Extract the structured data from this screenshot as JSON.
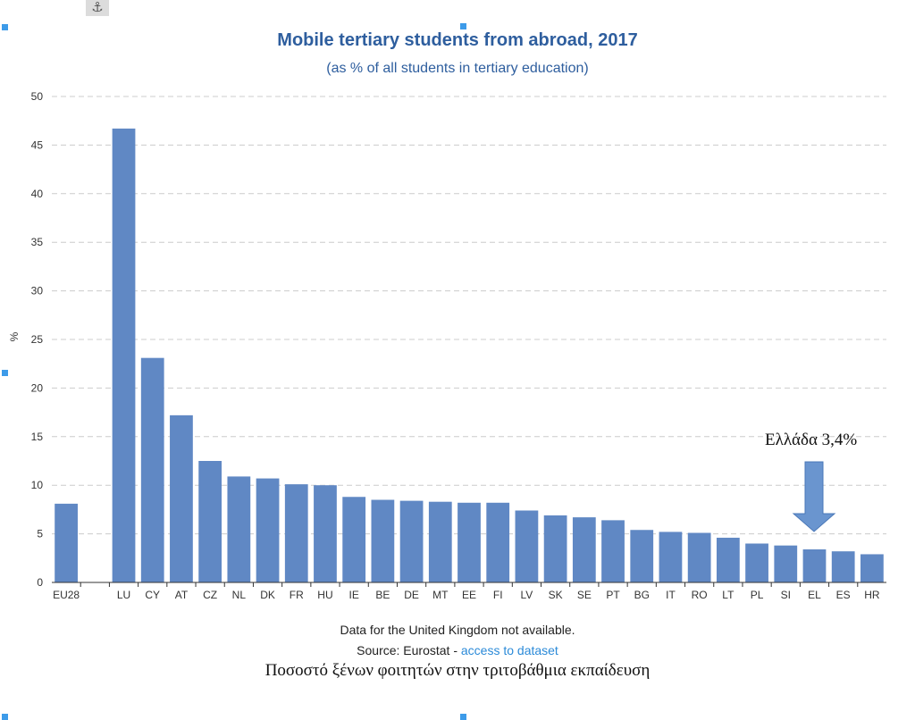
{
  "chart_data": {
    "type": "bar",
    "title": "Mobile tertiary students from abroad, 2017",
    "subtitle": "(as % of all students in tertiary education)",
    "ylabel": "%",
    "ylim": [
      0,
      50
    ],
    "yticks": [
      0,
      5,
      10,
      15,
      20,
      25,
      30,
      35,
      40,
      45,
      50
    ],
    "grid": true,
    "categories": [
      "EU28",
      "",
      "LU",
      "CY",
      "AT",
      "CZ",
      "NL",
      "DK",
      "FR",
      "HU",
      "IE",
      "BE",
      "DE",
      "MT",
      "EE",
      "FI",
      "LV",
      "SK",
      "SE",
      "PT",
      "BG",
      "IT",
      "RO",
      "LT",
      "PL",
      "SI",
      "EL",
      "ES",
      "HR"
    ],
    "values": [
      8.1,
      null,
      46.7,
      23.1,
      17.2,
      12.5,
      10.9,
      10.7,
      10.1,
      10.0,
      8.8,
      8.5,
      8.4,
      8.3,
      8.2,
      8.2,
      7.4,
      6.9,
      6.7,
      6.4,
      5.4,
      5.2,
      5.1,
      4.6,
      4.0,
      3.8,
      3.4,
      3.2,
      2.9
    ],
    "bar_color": "#6088c4",
    "annotation": {
      "text": "Ελλάδα 3,4%",
      "target": "EL"
    }
  },
  "footer": {
    "note": "Data for the United Kingdom not available.",
    "source_prefix": "Source: Eurostat - ",
    "source_link": "access to dataset"
  },
  "caption": "Ποσοστό ξένων φοιτητών στην τριτοβάθμια εκπαίδευση",
  "icons": {
    "anchor": "anchor-icon",
    "arrow": "arrow-down-icon"
  },
  "colors": {
    "title": "#2e5e9e",
    "link": "#2b8ad8",
    "grid": "#cccccc",
    "handle": "#3d9be9",
    "arrow": "#6a95cf"
  }
}
